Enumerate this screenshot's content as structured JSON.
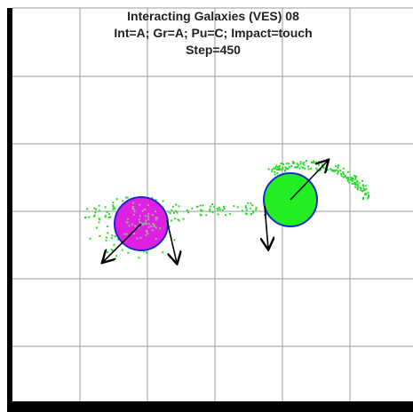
{
  "header": {
    "title": "Interacting Galaxies (VES) 08",
    "settings": "Int=A; Gr=A; Pu=C; Impact=touch",
    "step": "Step=450"
  }
}
